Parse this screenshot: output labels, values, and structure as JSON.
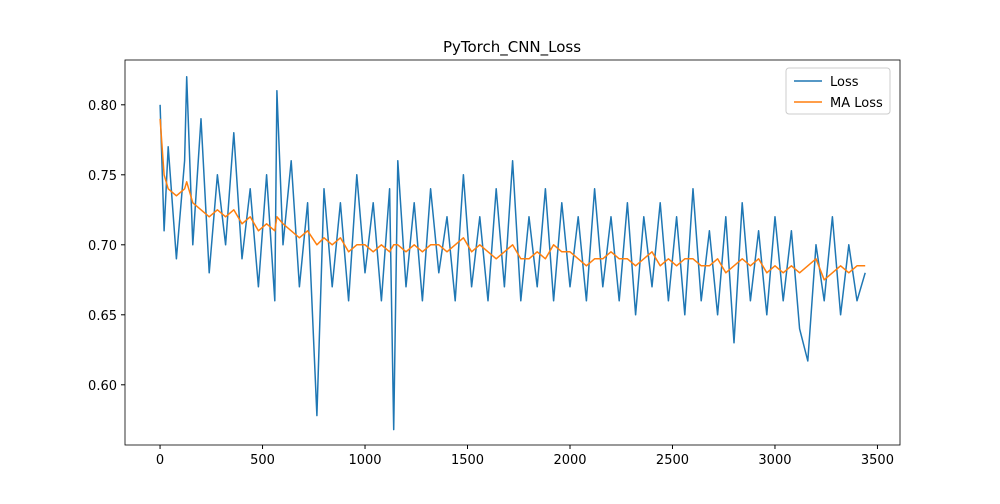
{
  "chart_data": {
    "type": "line",
    "title": "PyTorch_CNN_Loss",
    "x": [
      0,
      20,
      40,
      80,
      120,
      130,
      160,
      200,
      240,
      280,
      320,
      360,
      400,
      440,
      480,
      520,
      560,
      570,
      600,
      640,
      680,
      720,
      765,
      800,
      840,
      880,
      920,
      960,
      1000,
      1040,
      1080,
      1120,
      1140,
      1160,
      1200,
      1240,
      1280,
      1320,
      1360,
      1400,
      1440,
      1480,
      1520,
      1560,
      1600,
      1640,
      1680,
      1720,
      1760,
      1800,
      1840,
      1880,
      1920,
      1960,
      2000,
      2040,
      2080,
      2120,
      2160,
      2200,
      2240,
      2280,
      2320,
      2360,
      2400,
      2440,
      2480,
      2520,
      2560,
      2600,
      2640,
      2680,
      2720,
      2760,
      2800,
      2840,
      2880,
      2920,
      2960,
      3000,
      3040,
      3080,
      3120,
      3160,
      3200,
      3240,
      3280,
      3320,
      3360,
      3400,
      3440
    ],
    "series": [
      {
        "name": "Loss",
        "color": "#1f77b4",
        "values": [
          0.8,
          0.71,
          0.77,
          0.69,
          0.76,
          0.82,
          0.7,
          0.79,
          0.68,
          0.75,
          0.7,
          0.78,
          0.69,
          0.74,
          0.67,
          0.75,
          0.66,
          0.81,
          0.7,
          0.76,
          0.67,
          0.73,
          0.578,
          0.74,
          0.67,
          0.73,
          0.66,
          0.75,
          0.68,
          0.73,
          0.66,
          0.74,
          0.568,
          0.76,
          0.67,
          0.73,
          0.66,
          0.74,
          0.68,
          0.72,
          0.66,
          0.75,
          0.67,
          0.72,
          0.66,
          0.74,
          0.67,
          0.76,
          0.66,
          0.72,
          0.67,
          0.74,
          0.66,
          0.73,
          0.67,
          0.72,
          0.66,
          0.74,
          0.67,
          0.72,
          0.66,
          0.73,
          0.65,
          0.72,
          0.67,
          0.73,
          0.66,
          0.72,
          0.65,
          0.74,
          0.66,
          0.71,
          0.65,
          0.72,
          0.63,
          0.73,
          0.66,
          0.71,
          0.65,
          0.72,
          0.66,
          0.71,
          0.64,
          0.617,
          0.7,
          0.66,
          0.72,
          0.65,
          0.7,
          0.66,
          0.68
        ]
      },
      {
        "name": "MA Loss",
        "color": "#ff7f0e",
        "values": [
          0.79,
          0.75,
          0.74,
          0.735,
          0.74,
          0.745,
          0.73,
          0.725,
          0.72,
          0.725,
          0.72,
          0.725,
          0.715,
          0.72,
          0.71,
          0.715,
          0.71,
          0.72,
          0.715,
          0.71,
          0.705,
          0.71,
          0.7,
          0.705,
          0.7,
          0.705,
          0.695,
          0.7,
          0.7,
          0.695,
          0.7,
          0.695,
          0.7,
          0.7,
          0.695,
          0.7,
          0.695,
          0.7,
          0.7,
          0.695,
          0.7,
          0.705,
          0.695,
          0.7,
          0.695,
          0.69,
          0.695,
          0.7,
          0.69,
          0.69,
          0.695,
          0.69,
          0.7,
          0.695,
          0.695,
          0.69,
          0.685,
          0.69,
          0.69,
          0.695,
          0.69,
          0.69,
          0.685,
          0.69,
          0.695,
          0.685,
          0.69,
          0.685,
          0.69,
          0.69,
          0.685,
          0.685,
          0.69,
          0.68,
          0.685,
          0.69,
          0.685,
          0.69,
          0.68,
          0.685,
          0.68,
          0.685,
          0.68,
          0.685,
          0.69,
          0.675,
          0.68,
          0.685,
          0.68,
          0.685,
          0.685
        ]
      }
    ],
    "xlim": [
      -171,
      3610
    ],
    "ylim": [
      0.557,
      0.832
    ],
    "xticks": [
      0,
      500,
      1000,
      1500,
      2000,
      2500,
      3000,
      3500
    ],
    "yticks": [
      {
        "value": 0.6,
        "label": "0.60"
      },
      0.65,
      {
        "value": 0.7,
        "label": "0.70"
      },
      0.75,
      {
        "value": 0.8,
        "label": "0.80"
      }
    ],
    "legend": "upper right"
  }
}
